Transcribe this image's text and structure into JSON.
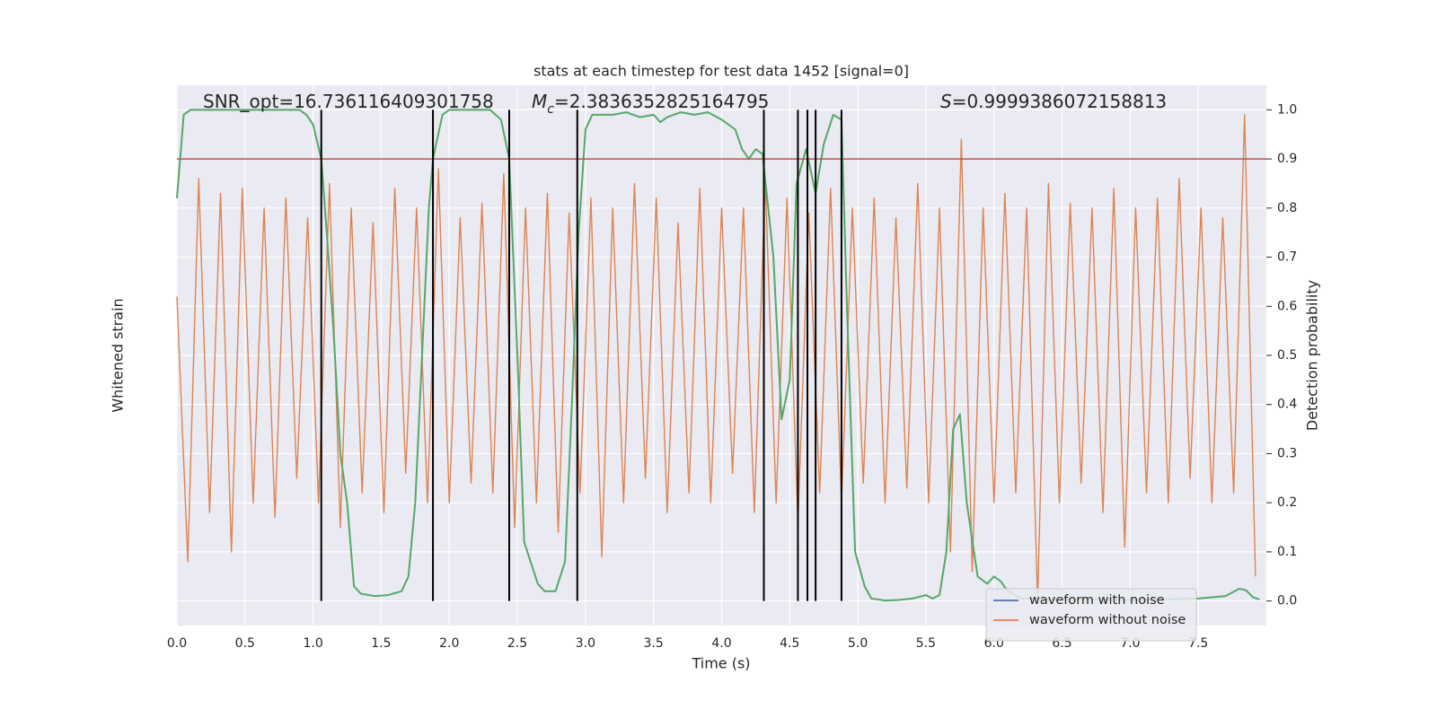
{
  "chart_data": {
    "type": "line",
    "title": "stats at each timestep for test data 1452 [signal=0]",
    "x_label": "Time (s)",
    "y_label": "Whitened strain",
    "y2_label": "Detection probability",
    "xlim": [
      0,
      8.0
    ],
    "xticks": [
      {
        "value": 0,
        "label": "0.0"
      },
      0.5,
      {
        "value": 1,
        "label": "1.0"
      },
      1.5,
      {
        "value": 2,
        "label": "2.0"
      },
      2.5,
      {
        "value": 3,
        "label": "3.0"
      },
      3.5,
      {
        "value": 4,
        "label": "4.0"
      },
      4.5,
      {
        "value": 5,
        "label": "5.0"
      },
      5.5,
      {
        "value": 6,
        "label": "6.0"
      },
      6.5,
      {
        "value": 7,
        "label": "7.0"
      },
      7.5
    ],
    "ylim": [
      -0.05,
      1.05
    ],
    "yticks": [
      {
        "value": 0,
        "label": "0.0"
      },
      0.1,
      0.2,
      0.3,
      0.4,
      0.5,
      0.6,
      0.7,
      0.8,
      0.9,
      {
        "value": 1,
        "label": "1.0"
      }
    ],
    "grid": true,
    "annotations": [
      {
        "text": "SNR_opt=16.736116409301758"
      },
      {
        "symbol": "M",
        "subscript": "c",
        "text": "=2.3836352825164795"
      },
      {
        "symbol": "S",
        "text": "=0.9999386072158813"
      }
    ],
    "threshold": {
      "value": 0.9,
      "color": "#c44e52"
    },
    "vlines": {
      "color": "#000000",
      "x": [
        1.06,
        1.88,
        2.44,
        2.94,
        4.31,
        4.56,
        4.63,
        4.69,
        4.88
      ]
    },
    "legend": {
      "loc": "lower right",
      "items": [
        {
          "name": "waveform with noise",
          "color": "#4c72b0"
        },
        {
          "name": "waveform without noise",
          "color": "#dd8452"
        }
      ]
    },
    "series": [
      {
        "color": "#dd8452",
        "x": [
          0,
          0.08,
          0.16,
          0.24,
          0.32,
          0.4,
          0.48,
          0.56,
          0.64,
          0.72,
          0.8,
          0.88,
          0.96,
          1.04,
          1.12,
          1.2,
          1.28,
          1.36,
          1.44,
          1.52,
          1.6,
          1.68,
          1.76,
          1.84,
          1.92,
          2,
          2.08,
          2.16,
          2.24,
          2.32,
          2.4,
          2.48,
          2.56,
          2.64,
          2.72,
          2.8,
          2.88,
          2.96,
          3.04,
          3.12,
          3.2,
          3.28,
          3.36,
          3.44,
          3.52,
          3.6,
          3.68,
          3.76,
          3.84,
          3.92,
          4,
          4.08,
          4.16,
          4.24,
          4.32,
          4.4,
          4.48,
          4.56,
          4.64,
          4.72,
          4.8,
          4.88,
          4.96,
          5.04,
          5.12,
          5.2,
          5.28,
          5.36,
          5.44,
          5.52,
          5.6,
          5.68,
          5.76,
          5.84,
          5.92,
          6,
          6.08,
          6.16,
          6.24,
          6.32,
          6.4,
          6.48,
          6.56,
          6.64,
          6.72,
          6.8,
          6.88,
          6.96,
          7.04,
          7.12,
          7.2,
          7.28,
          7.36,
          7.44,
          7.52,
          7.6,
          7.68,
          7.76,
          7.84,
          7.92
        ],
        "values": [
          0.62,
          0.08,
          0.86,
          0.18,
          0.83,
          0.1,
          0.84,
          0.2,
          0.8,
          0.17,
          0.82,
          0.25,
          0.78,
          0.2,
          0.85,
          0.15,
          0.8,
          0.22,
          0.77,
          0.18,
          0.84,
          0.26,
          0.8,
          0.2,
          0.88,
          0.2,
          0.78,
          0.24,
          0.81,
          0.22,
          0.87,
          0.15,
          0.8,
          0.2,
          0.83,
          0.14,
          0.79,
          0.22,
          0.82,
          0.09,
          0.8,
          0.2,
          0.85,
          0.25,
          0.82,
          0.18,
          0.77,
          0.22,
          0.84,
          0.2,
          0.8,
          0.26,
          0.8,
          0.18,
          0.86,
          0.2,
          0.82,
          0.16,
          0.79,
          0.22,
          0.84,
          0.2,
          0.8,
          0.24,
          0.82,
          0.2,
          0.78,
          0.23,
          0.85,
          0.2,
          0.8,
          0.1,
          0.94,
          0.06,
          0.8,
          0.2,
          0.83,
          0.22,
          0.8,
          0.0,
          0.85,
          0.2,
          0.81,
          0.24,
          0.8,
          0.18,
          0.84,
          0.11,
          0.8,
          0.22,
          0.82,
          0.2,
          0.86,
          0.25,
          0.8,
          0.2,
          0.78,
          0.22,
          0.99,
          0.05
        ]
      },
      {
        "color": "#55a868",
        "x": [
          0,
          0.05,
          0.1,
          0.2,
          0.5,
          0.9,
          0.95,
          1,
          1.06,
          1.1,
          1.15,
          1.2,
          1.25,
          1.3,
          1.35,
          1.45,
          1.55,
          1.65,
          1.7,
          1.75,
          1.8,
          1.85,
          1.88,
          1.95,
          2,
          2.3,
          2.38,
          2.44,
          2.5,
          2.55,
          2.65,
          2.7,
          2.78,
          2.85,
          2.9,
          2.95,
          3,
          3.05,
          3.2,
          3.3,
          3.4,
          3.5,
          3.55,
          3.6,
          3.7,
          3.8,
          3.9,
          4,
          4.1,
          4.15,
          4.2,
          4.25,
          4.3,
          4.38,
          4.44,
          4.5,
          4.55,
          4.62,
          4.69,
          4.75,
          4.82,
          4.88,
          4.92,
          4.98,
          5.05,
          5.1,
          5.2,
          5.3,
          5.4,
          5.5,
          5.55,
          5.6,
          5.65,
          5.7,
          5.75,
          5.8,
          5.88,
          5.95,
          6,
          6.05,
          6.1,
          6.2,
          6.5,
          7,
          7.5,
          7.7,
          7.8,
          7.85,
          7.9,
          7.95
        ],
        "values": [
          0.82,
          0.99,
          1,
          1,
          1,
          1,
          0.99,
          0.97,
          0.9,
          0.75,
          0.55,
          0.3,
          0.2,
          0.03,
          0.015,
          0.01,
          0.012,
          0.02,
          0.05,
          0.2,
          0.5,
          0.8,
          0.9,
          0.99,
          1,
          1,
          0.98,
          0.9,
          0.5,
          0.12,
          0.035,
          0.02,
          0.02,
          0.08,
          0.4,
          0.75,
          0.96,
          0.99,
          0.99,
          0.995,
          0.985,
          0.99,
          0.975,
          0.985,
          0.995,
          0.99,
          0.995,
          0.98,
          0.96,
          0.92,
          0.9,
          0.92,
          0.91,
          0.7,
          0.37,
          0.45,
          0.85,
          0.92,
          0.83,
          0.93,
          0.99,
          0.98,
          0.6,
          0.1,
          0.03,
          0.005,
          0.001,
          0.002,
          0.005,
          0.012,
          0.005,
          0.012,
          0.1,
          0.35,
          0.38,
          0.2,
          0.05,
          0.035,
          0.05,
          0.04,
          0.02,
          0.005,
          0.003,
          0.002,
          0.005,
          0.01,
          0.025,
          0.022,
          0.008,
          0.003
        ]
      }
    ]
  }
}
